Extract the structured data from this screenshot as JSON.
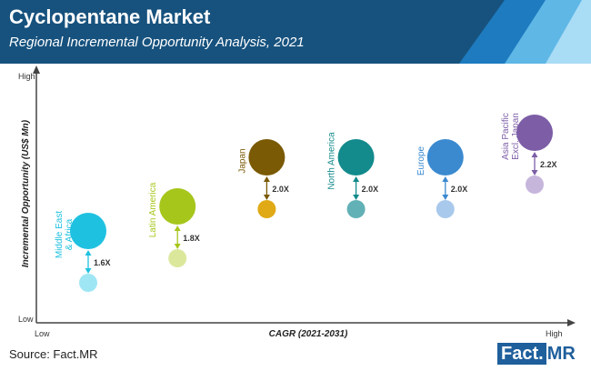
{
  "header": {
    "title": "Cyclopentane Market",
    "subtitle": "Regional Incremental Opportunity Analysis, 2021",
    "accent_colors": [
      "#1e7bbf",
      "#5fb7e6",
      "#a9dcf5"
    ]
  },
  "chart_data": {
    "type": "scatter",
    "xlabel": "CAGR (2021-2031)",
    "ylabel": "Incremental Opportunity (US$ Mn)",
    "x_ticks": [
      "Low",
      "High"
    ],
    "y_ticks": [
      "High",
      "Low"
    ],
    "series": [
      {
        "name": "Middle East\n& Africa",
        "multiplier": "1.6X",
        "color": "#1fc1e0",
        "light_color": "#9fe6f4",
        "x_rank": 1,
        "y_rank": 1
      },
      {
        "name": "Latin America",
        "multiplier": "1.8X",
        "color": "#a6c61c",
        "light_color": "#dbe89c",
        "x_rank": 2,
        "y_rank": 2
      },
      {
        "name": "Japan",
        "multiplier": "2.0X",
        "color": "#7a5a05",
        "light_color": "#e0a916",
        "x_rank": 3,
        "y_rank": 4
      },
      {
        "name": "North America",
        "multiplier": "2.0X",
        "color": "#138a8c",
        "light_color": "#62b1b6",
        "x_rank": 4,
        "y_rank": 4
      },
      {
        "name": "Europe",
        "multiplier": "2.0X",
        "color": "#3b8ad0",
        "light_color": "#a9c9ec",
        "x_rank": 5,
        "y_rank": 4
      },
      {
        "name": "Asia Pacific\nExcl. Japan",
        "multiplier": "2.2X",
        "color": "#7c5da6",
        "light_color": "#c7b6dc",
        "x_rank": 6,
        "y_rank": 5
      }
    ]
  },
  "footer": {
    "source": "Source: Fact.MR",
    "logo_main": "Fact.",
    "logo_suffix": "MR"
  }
}
